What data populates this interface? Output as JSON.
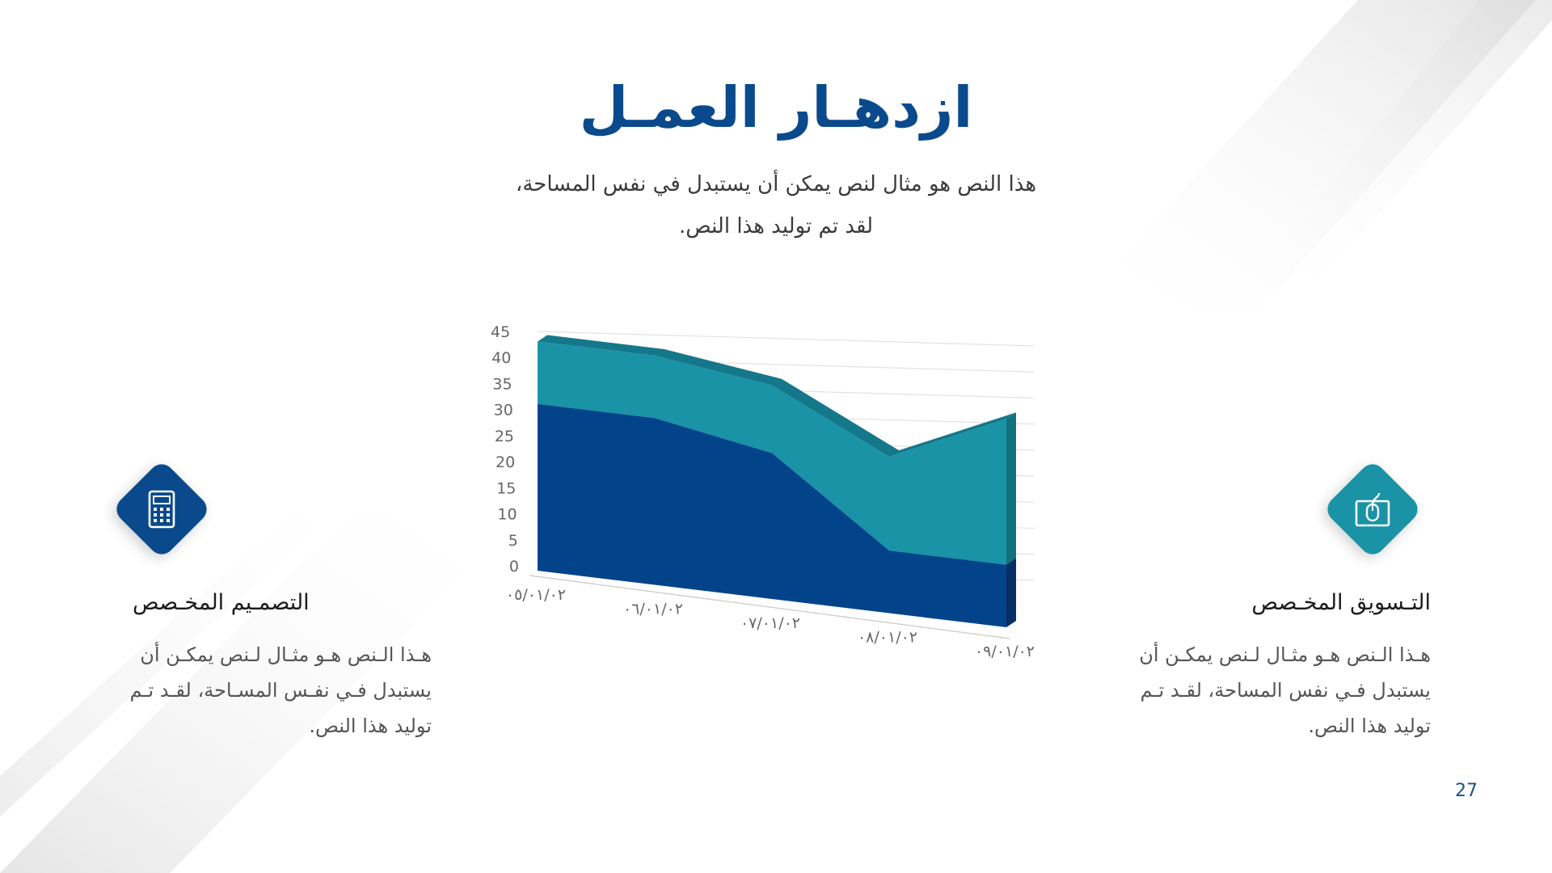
{
  "slide": {
    "title": "ازدهـار العمـل",
    "subtitle_line1": "هذا النص هو مثال لنص يمكن أن يستبدل في نفس المساحة،",
    "subtitle_line2": "لقد تم توليد هذا النص.",
    "page_number": "27"
  },
  "features": {
    "left": {
      "icon": "calculator-icon",
      "title": "التصمـيم المخـصص",
      "text": "هـذا الـنص هـو مثـال لـنص يمكـن أن يستبدل فـي نفـس المسـاحة، لقـد تـم توليد هذا النص."
    },
    "right": {
      "icon": "mouse-in-box-icon",
      "title": "التـسويق المخـصص",
      "text": "هـذا الـنص هـو مثـال لـنص يمكـن أن يستبدل فـي نفس المساحة، لقـد تـم توليد هذا النص."
    }
  },
  "colors": {
    "title": "#0a4a8c",
    "series_dark": "#03438a",
    "series_teal": "#1a93a6",
    "icon_blue": "#0a4a8c",
    "icon_teal": "#1a93a6"
  },
  "chart_data": {
    "type": "area",
    "stacked": true,
    "three_d": true,
    "categories": [
      "٠٥/٠١/٠٢",
      "٠٦/٠١/٠٢",
      "٠٧/٠١/٠٢",
      "٠٨/٠١/٠٢",
      "٠٩/٠١/٠٢"
    ],
    "series": [
      {
        "values": [
          32,
          32,
          28,
          12,
          12
        ]
      },
      {
        "values": [
          12,
          12,
          13,
          18,
          28
        ]
      }
    ],
    "yticks": [
      "0",
      "5",
      "10",
      "15",
      "20",
      "25",
      "30",
      "35",
      "40",
      "45"
    ],
    "ylim": [
      0,
      45
    ],
    "grid": true,
    "legend": "none"
  }
}
